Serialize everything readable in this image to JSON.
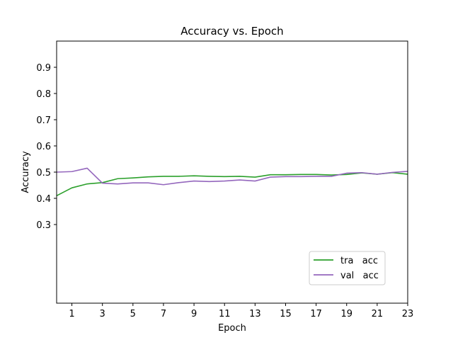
{
  "chart_data": {
    "type": "line",
    "title": "Accuracy vs. Epoch",
    "xlabel": "Epoch",
    "ylabel": "Accuracy",
    "xlim": [
      0,
      23
    ],
    "ylim": [
      0.0,
      1.0
    ],
    "xticks": [
      1,
      3,
      5,
      7,
      9,
      11,
      13,
      15,
      17,
      19,
      21,
      23
    ],
    "yticks": [
      0.3,
      0.4,
      0.5,
      0.6,
      0.7,
      0.8,
      0.9
    ],
    "grid": false,
    "legend_position": "lower-right",
    "x": [
      0,
      1,
      2,
      3,
      4,
      5,
      6,
      7,
      8,
      9,
      10,
      11,
      12,
      13,
      14,
      15,
      16,
      17,
      18,
      19,
      20,
      21,
      22,
      23
    ],
    "series": [
      {
        "name": "tra   acc",
        "color": "#2ca02c",
        "values": [
          0.41,
          0.44,
          0.455,
          0.46,
          0.475,
          0.478,
          0.482,
          0.484,
          0.484,
          0.486,
          0.484,
          0.483,
          0.484,
          0.481,
          0.49,
          0.49,
          0.491,
          0.491,
          0.489,
          0.491,
          0.497,
          0.492,
          0.498,
          0.492
        ]
      },
      {
        "name": "val   acc",
        "color": "#9467bd",
        "values": [
          0.5,
          0.502,
          0.515,
          0.458,
          0.455,
          0.459,
          0.459,
          0.452,
          0.46,
          0.466,
          0.464,
          0.466,
          0.47,
          0.466,
          0.481,
          0.483,
          0.483,
          0.484,
          0.484,
          0.496,
          0.498,
          0.492,
          0.499,
          0.503
        ]
      }
    ]
  }
}
